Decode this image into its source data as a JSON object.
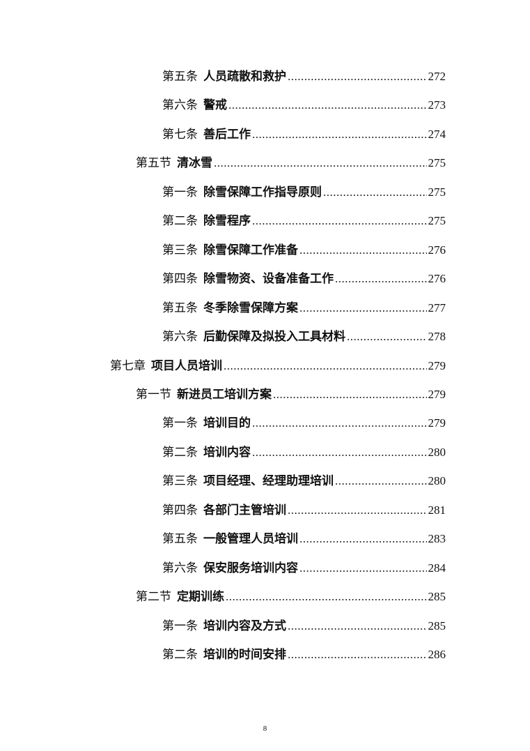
{
  "toc": [
    {
      "level": 3,
      "prefix": "第五条",
      "title": "人员疏散和救护",
      "page": "272"
    },
    {
      "level": 3,
      "prefix": "第六条",
      "title": "警戒",
      "page": "273"
    },
    {
      "level": 3,
      "prefix": "第七条",
      "title": "善后工作",
      "page": "274"
    },
    {
      "level": 2,
      "prefix": "第五节",
      "title": "清冰雪",
      "page": "275"
    },
    {
      "level": 3,
      "prefix": "第一条",
      "title": "除雪保障工作指导原则",
      "page": "275"
    },
    {
      "level": 3,
      "prefix": "第二条",
      "title": "除雪程序",
      "page": "275"
    },
    {
      "level": 3,
      "prefix": "第三条",
      "title": "除雪保障工作准备",
      "page": "276"
    },
    {
      "level": 3,
      "prefix": "第四条",
      "title": "除雪物资、设备准备工作",
      "page": "276"
    },
    {
      "level": 3,
      "prefix": "第五条",
      "title": "冬季除雪保障方案",
      "page": "277"
    },
    {
      "level": 3,
      "prefix": "第六条",
      "title": "后勤保障及拟投入工具材料",
      "page": "278"
    },
    {
      "level": 1,
      "prefix": "第七章",
      "title": "项目人员培训",
      "page": "279"
    },
    {
      "level": 2,
      "prefix": "第一节",
      "title": "新进员工培训方案",
      "page": "279"
    },
    {
      "level": 3,
      "prefix": "第一条",
      "title": "培训目的",
      "page": "279"
    },
    {
      "level": 3,
      "prefix": "第二条",
      "title": "培训内容",
      "page": "280"
    },
    {
      "level": 3,
      "prefix": "第三条",
      "title": "项目经理、经理助理培训",
      "page": "280"
    },
    {
      "level": 3,
      "prefix": "第四条",
      "title": "各部门主管培训",
      "page": "281"
    },
    {
      "level": 3,
      "prefix": "第五条",
      "title": "一般管理人员培训",
      "page": "283"
    },
    {
      "level": 3,
      "prefix": "第六条",
      "title": "保安服务培训内容",
      "page": "284"
    },
    {
      "level": 2,
      "prefix": "第二节",
      "title": "定期训练",
      "page": "285"
    },
    {
      "level": 3,
      "prefix": "第一条",
      "title": "培训内容及方式",
      "page": "285"
    },
    {
      "level": 3,
      "prefix": "第二条",
      "title": "培训的时间安排",
      "page": "286"
    }
  ],
  "footer": {
    "page_number": "8"
  }
}
